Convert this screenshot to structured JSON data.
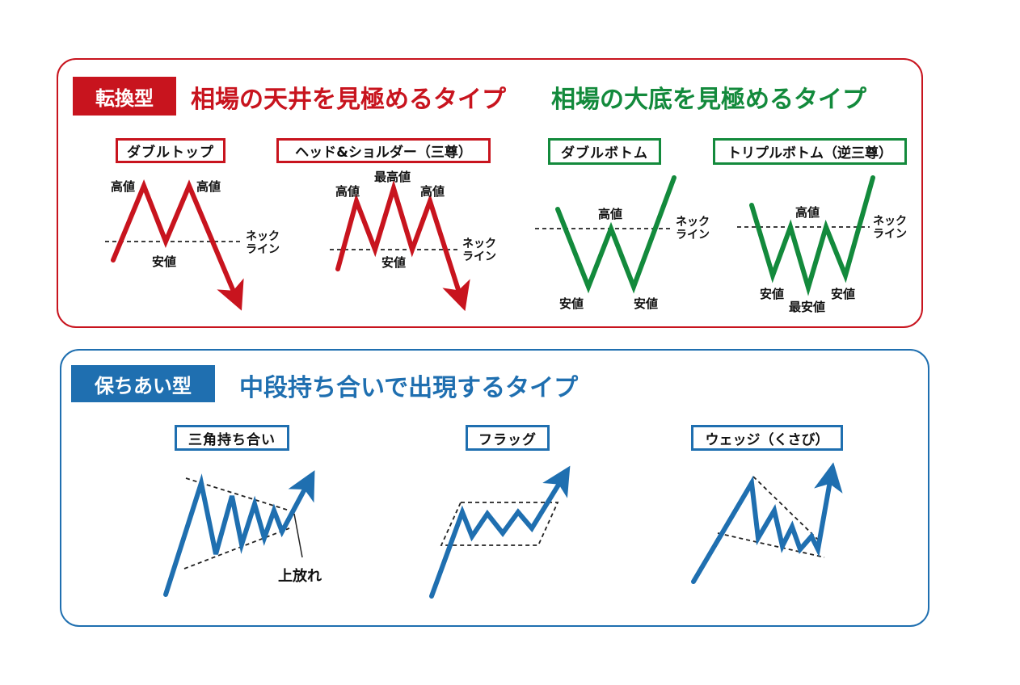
{
  "reversal": {
    "tag": "転換型",
    "heading_top": "相場の天井を見極めるタイプ",
    "heading_bottom": "相場の大底を見極めるタイプ",
    "colors": {
      "red": "#c8141e",
      "green": "#138a3c"
    },
    "patterns": {
      "double_top": {
        "label": "ダブルトップ",
        "high1": "高値",
        "high2": "高値",
        "low": "安値",
        "neckline1": "ネック",
        "neckline2": "ライン"
      },
      "head_shoulders": {
        "label": "ヘッド&ショルダー（三尊）",
        "high_left": "高値",
        "highest": "最高値",
        "high_right": "高値",
        "low": "安値",
        "neckline1": "ネック",
        "neckline2": "ライン"
      },
      "double_bottom": {
        "label": "ダブルボトム",
        "high": "高値",
        "low1": "安値",
        "low2": "安値",
        "neckline1": "ネック",
        "neckline2": "ライン"
      },
      "triple_bottom": {
        "label": "トリプルボトム（逆三尊）",
        "high": "高値",
        "low_left": "安値",
        "lowest": "最安値",
        "low_right": "安値",
        "neckline1": "ネック",
        "neckline2": "ライン"
      }
    }
  },
  "continuation": {
    "tag": "保ちあい型",
    "heading": "中段持ち合いで出現するタイプ",
    "colors": {
      "blue": "#1f6fb0"
    },
    "patterns": {
      "triangle": {
        "label": "三角持ち合い",
        "breakout": "上放れ"
      },
      "flag": {
        "label": "フラッグ"
      },
      "wedge": {
        "label": "ウェッジ（くさび）"
      }
    }
  }
}
